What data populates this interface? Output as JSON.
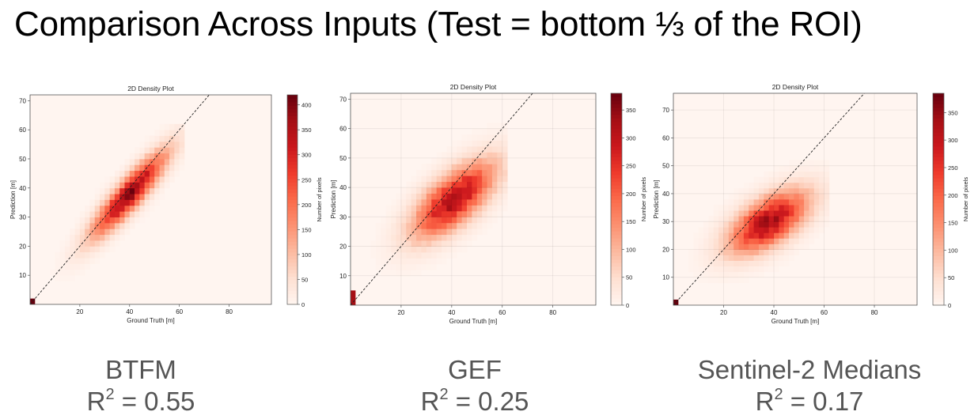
{
  "slide": {
    "title": "Comparison Across Inputs (Test = bottom ⅓ of the ROI)"
  },
  "colormap": {
    "name": "Reds",
    "stops": [
      "#fff5f0",
      "#fee0d2",
      "#fcbba1",
      "#fc9272",
      "#fb6a4a",
      "#ef3b2c",
      "#cb181d",
      "#a50f15",
      "#67000d"
    ]
  },
  "captions": [
    {
      "label": "BTFM",
      "r2_prefix": "R",
      "r2_sup": "2",
      "r2_value": "= 0.55"
    },
    {
      "label": "GEF",
      "r2_prefix": "R",
      "r2_sup": "2",
      "r2_value": "= 0.25"
    },
    {
      "label": "Sentinel-2 Medians",
      "r2_prefix": "R",
      "r2_sup": "2",
      "r2_value": "= 0.17"
    }
  ],
  "chart_data": [
    {
      "type": "heatmap",
      "title": "2D Density Plot",
      "xlabel": "Ground Truth [m]",
      "ylabel": "Prediction [m]",
      "xlim": [
        0,
        97
      ],
      "ylim": [
        0,
        72
      ],
      "xticks": [
        20,
        40,
        60,
        80
      ],
      "yticks": [
        10,
        20,
        30,
        40,
        50,
        60,
        70
      ],
      "grid": false,
      "colorbar": {
        "label": "Number of pixels",
        "min": 0,
        "max": 420,
        "ticks": [
          0,
          50,
          100,
          150,
          200,
          250,
          300,
          350,
          400
        ]
      },
      "reference_line": {
        "from": [
          0,
          0
        ],
        "to": [
          72,
          72
        ],
        "style": "dashed"
      },
      "density": {
        "center": [
          40,
          38
        ],
        "sd_major": 14,
        "sd_minor": 3.3,
        "angle_deg": 44,
        "peak": 380,
        "range": [
          0,
          62
        ]
      },
      "origin_cell": {
        "x": [
          0,
          2
        ],
        "y": [
          0,
          2
        ],
        "value": 420
      }
    },
    {
      "type": "heatmap",
      "title": "2D Density Plot",
      "xlabel": "Ground Truth [m]",
      "ylabel": "Prediction [m]",
      "xlim": [
        0,
        97
      ],
      "ylim": [
        0,
        72
      ],
      "xticks": [
        20,
        40,
        60,
        80
      ],
      "yticks": [
        10,
        20,
        30,
        40,
        50,
        60,
        70
      ],
      "grid": true,
      "colorbar": {
        "label": "Number of pixels",
        "min": 0,
        "max": 380,
        "ticks": [
          0,
          50,
          100,
          150,
          200,
          250,
          300,
          350
        ]
      },
      "reference_line": {
        "from": [
          0,
          0
        ],
        "to": [
          72,
          72
        ],
        "style": "dashed"
      },
      "density": {
        "center": [
          41,
          36
        ],
        "sd_major": 13,
        "sd_minor": 5.5,
        "angle_deg": 36,
        "peak": 320,
        "range": [
          0,
          62
        ]
      },
      "origin_cell": {
        "x": [
          0,
          2
        ],
        "y": [
          0,
          5
        ],
        "value": 330
      }
    },
    {
      "type": "heatmap",
      "title": "2D Density Plot",
      "xlabel": "Ground Truth [m]",
      "ylabel": "Prediction [m]",
      "xlim": [
        0,
        97
      ],
      "ylim": [
        0,
        76
      ],
      "xticks": [
        20,
        40,
        60,
        80
      ],
      "yticks": [
        10,
        20,
        30,
        40,
        50,
        60,
        70
      ],
      "grid": true,
      "colorbar": {
        "label": "Number of pixels",
        "min": 0,
        "max": 385,
        "ticks": [
          0,
          50,
          100,
          150,
          200,
          250,
          300,
          350
        ]
      },
      "reference_line": {
        "from": [
          0,
          0
        ],
        "to": [
          76,
          76
        ],
        "style": "dashed"
      },
      "density": {
        "center": [
          38,
          30
        ],
        "sd_major": 12,
        "sd_minor": 5.5,
        "angle_deg": 30,
        "peak": 330,
        "range": [
          0,
          62
        ]
      },
      "origin_cell": {
        "x": [
          0,
          2
        ],
        "y": [
          0,
          2
        ],
        "value": 385
      }
    }
  ]
}
